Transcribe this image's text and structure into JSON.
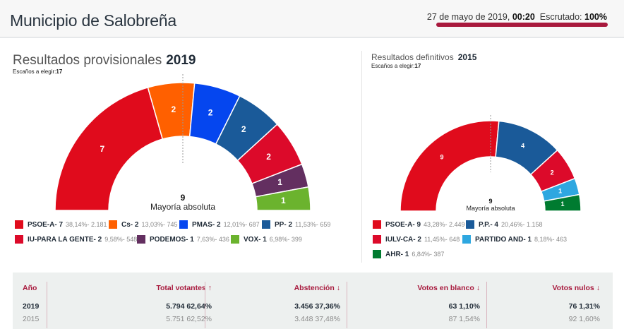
{
  "header": {
    "title": "Municipio de Salobreña",
    "date": "27 de mayo de 2019,",
    "time": "00:20",
    "scrutiny_label": "Escrutado:",
    "scrutiny_value": "100%",
    "accent_color": "#a8193d"
  },
  "panels": {
    "current": {
      "title": "Resultados provisionales",
      "year": "2019",
      "seats_label": "Escaños a elegir:",
      "seats_total": "17",
      "majority_number": "9",
      "majority_label": "Mayoría absoluta"
    },
    "previous": {
      "title": "Resultados definitivos",
      "year": "2015",
      "seats_label": "Escaños a elegir:",
      "seats_total": "17",
      "majority_number": "9",
      "majority_label": "Mayoría absoluta"
    }
  },
  "chart_data": [
    {
      "type": "pie",
      "subtype": "parliament-semicircle",
      "title": "Resultados provisionales 2019",
      "total_seats": 17,
      "majority": 9,
      "series": [
        {
          "party": "PSOE-A",
          "seats": 7,
          "pct": "38,14%",
          "votes": "2.181",
          "color": "#e00b1c"
        },
        {
          "party": "Cs",
          "seats": 2,
          "pct": "13,03%",
          "votes": "745",
          "color": "#ff6000"
        },
        {
          "party": "PMAS",
          "seats": 2,
          "pct": "12,01%",
          "votes": "687",
          "color": "#0546ef"
        },
        {
          "party": "PP",
          "seats": 2,
          "pct": "11,53%",
          "votes": "659",
          "color": "#1a5a99"
        },
        {
          "party": "IU-PARA LA GENTE",
          "seats": 2,
          "pct": "9,58%",
          "votes": "548",
          "color": "#dc0a2a"
        },
        {
          "party": "PODEMOS",
          "seats": 1,
          "pct": "7,63%",
          "votes": "436",
          "color": "#632f60"
        },
        {
          "party": "VOX",
          "seats": 1,
          "pct": "6,98%",
          "votes": "399",
          "color": "#6bb32e"
        }
      ]
    },
    {
      "type": "pie",
      "subtype": "parliament-semicircle",
      "title": "Resultados definitivos 2015",
      "total_seats": 17,
      "majority": 9,
      "series": [
        {
          "party": "PSOE-A",
          "seats": 9,
          "pct": "43,28%",
          "votes": "2.449",
          "color": "#e00b1c"
        },
        {
          "party": "P.P.",
          "seats": 4,
          "pct": "20,46%",
          "votes": "1.158",
          "color": "#1a5a99"
        },
        {
          "party": "IULV-CA",
          "seats": 2,
          "pct": "11,45%",
          "votes": "648",
          "color": "#dc0a2a"
        },
        {
          "party": "PARTIDO AND",
          "seats": 1,
          "pct": "8,18%",
          "votes": "463",
          "color": "#2ea7e0"
        },
        {
          "party": "AHR",
          "seats": 1,
          "pct": "6,84%",
          "votes": "387",
          "color": "#007b30"
        }
      ]
    }
  ],
  "table": {
    "columns": [
      {
        "label": "Año",
        "arrow": ""
      },
      {
        "label": "Total votantes",
        "arrow": "↑"
      },
      {
        "label": "Abstención",
        "arrow": "↓"
      },
      {
        "label": "Votos en blanco",
        "arrow": "↓"
      },
      {
        "label": "Votos nulos",
        "arrow": "↓"
      }
    ],
    "rows": [
      {
        "year": "2019",
        "total": "5.794  62,64%",
        "abstention": "3.456  37,36%",
        "blank": "63  1,10%",
        "null": "76  1,31%"
      },
      {
        "year": "2015",
        "total": "5.751  62,52%",
        "abstention": "3.448  37,48%",
        "blank": "87  1,54%",
        "null": "92  1,60%"
      }
    ]
  }
}
